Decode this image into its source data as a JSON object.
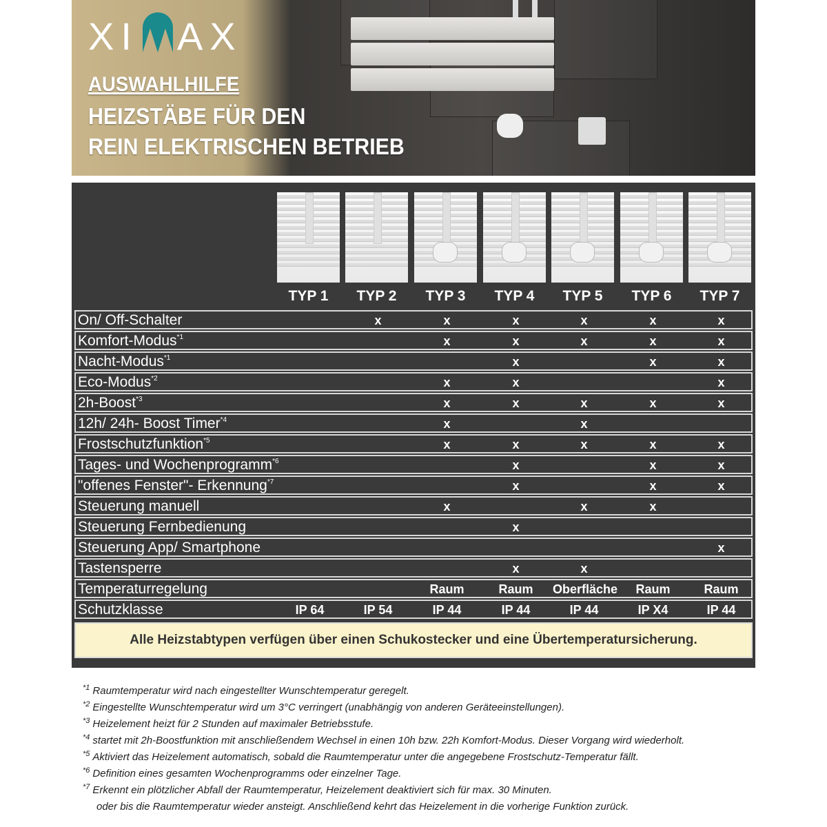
{
  "header": {
    "brand": "XIMAX",
    "subtitle": "AUSWAHLHILFE",
    "title_line1": "HEIZSTÄBE FÜR DEN",
    "title_line2": "REIN ELEKTRISCHEN BETRIEB"
  },
  "table": {
    "types": [
      "TYP 1",
      "TYP 2",
      "TYP 3",
      "TYP 4",
      "TYP 5",
      "TYP 6",
      "TYP 7"
    ],
    "rows": [
      {
        "label": "On/ Off-Schalter",
        "note": "",
        "values": [
          "",
          "x",
          "x",
          "x",
          "x",
          "x",
          "x"
        ]
      },
      {
        "label": "Komfort-Modus",
        "note": "*1",
        "values": [
          "",
          "",
          "x",
          "x",
          "x",
          "x",
          "x"
        ]
      },
      {
        "label": "Nacht-Modus",
        "note": "*1",
        "values": [
          "",
          "",
          "",
          "x",
          "",
          "x",
          "x"
        ]
      },
      {
        "label": "Eco-Modus",
        "note": "*2",
        "values": [
          "",
          "",
          "x",
          "x",
          "",
          "",
          "x"
        ]
      },
      {
        "label": "2h-Boost",
        "note": "*3",
        "values": [
          "",
          "",
          "x",
          "x",
          "x",
          "x",
          "x"
        ]
      },
      {
        "label": "12h/ 24h- Boost Timer",
        "note": "*4",
        "values": [
          "",
          "",
          "x",
          "",
          "x",
          "",
          ""
        ]
      },
      {
        "label": "Frostschutzfunktion",
        "note": "*5",
        "values": [
          "",
          "",
          "x",
          "x",
          "x",
          "x",
          "x"
        ]
      },
      {
        "label": "Tages- und Wochenprogramm",
        "note": "*6",
        "values": [
          "",
          "",
          "",
          "x",
          "",
          "x",
          "x"
        ]
      },
      {
        "label": "\"offenes Fenster\"- Erkennung",
        "note": "*7",
        "values": [
          "",
          "",
          "",
          "x",
          "",
          "x",
          "x"
        ]
      },
      {
        "label": "Steuerung manuell",
        "note": "",
        "values": [
          "",
          "",
          "x",
          "",
          "x",
          "x",
          ""
        ]
      },
      {
        "label": "Steuerung Fernbedienung",
        "note": "",
        "values": [
          "",
          "",
          "",
          "x",
          "",
          "",
          ""
        ]
      },
      {
        "label": "Steuerung App/ Smartphone",
        "note": "",
        "values": [
          "",
          "",
          "",
          "",
          "",
          "",
          "x"
        ]
      },
      {
        "label": "Tastensperre",
        "note": "",
        "values": [
          "",
          "",
          "",
          "x",
          "x",
          "",
          ""
        ]
      },
      {
        "label": "Temperaturregelung",
        "note": "",
        "values": [
          "",
          "",
          "Raum",
          "Raum",
          "Oberfläche",
          "Raum",
          "Raum"
        ]
      },
      {
        "label": "Schutzklasse",
        "note": "",
        "values": [
          "IP 64",
          "IP 54",
          "IP 44",
          "IP 44",
          "IP 44",
          "IP X4",
          "IP 44"
        ]
      }
    ],
    "notice": "Alle Heizstabtypen verfügen über einen Schukostecker und eine Übertemperatursicherung."
  },
  "footnotes": [
    {
      "mark": "*1",
      "text": "Raumtemperatur wird nach eingestellter Wunschtemperatur geregelt."
    },
    {
      "mark": "*2",
      "text": "Eingestellte Wunschtemperatur wird um 3°C verringert (unabhängig von anderen Geräteeinstellungen)."
    },
    {
      "mark": "*3",
      "text": "Heizelement heizt für 2 Stunden auf maximaler Betriebsstufe."
    },
    {
      "mark": "*4",
      "text": "startet mit 2h-Boostfunktion mit anschließendem Wechsel in einen 10h bzw. 22h Komfort-Modus. Dieser Vorgang wird wiederholt."
    },
    {
      "mark": "*5",
      "text": "Aktiviert das Heizelement automatisch, sobald die Raumtemperatur unter die angegebene Frostschutz-Temperatur fällt."
    },
    {
      "mark": "*6",
      "text": "Definition eines gesamten Wochenprogramms oder einzelner Tage."
    },
    {
      "mark": "*7",
      "text": "Erkennt ein plötzlicher Abfall der Raumtemperatur, Heizelement deaktiviert sich für max. 30 Minuten."
    },
    {
      "mark": "",
      "text": "oder bis die Raumtemperatur wieder ansteigt. Anschließend kehrt das Heizelement in die vorherige Funktion zurück."
    }
  ],
  "colors": {
    "panel": "#3a3a3a",
    "notice_bg": "#fbf3cb",
    "brand_teal": "#1a8a8c"
  }
}
